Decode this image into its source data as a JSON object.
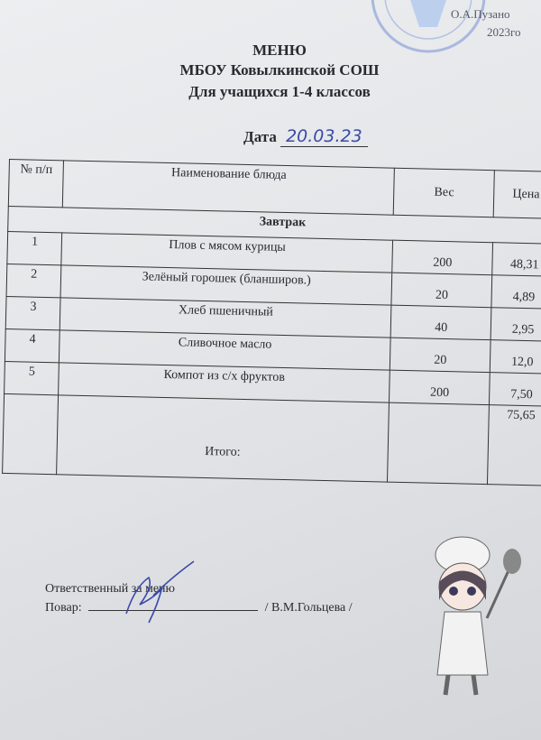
{
  "approval": {
    "name": "О.А.Пузано",
    "year": "2023го"
  },
  "header": {
    "title": "МЕНЮ",
    "school": "МБОУ Ковылкинской СОШ",
    "audience": "Для учащихся 1-4 классов",
    "date_label": "Дата",
    "date_value": "20.03.23"
  },
  "table": {
    "columns": [
      "№ п/п",
      "Наименование блюда",
      "Вес",
      "Цена"
    ],
    "section": "Завтрак",
    "rows": [
      {
        "n": "1",
        "name": "Плов с мясом курицы",
        "weight": "200",
        "price": "48,31"
      },
      {
        "n": "2",
        "name": "Зелёный горошек (бланширов.)",
        "weight": "20",
        "price": "4,89"
      },
      {
        "n": "3",
        "name": "Хлеб пшеничный",
        "weight": "40",
        "price": "2,95"
      },
      {
        "n": "4",
        "name": "Сливочное масло",
        "weight": "20",
        "price": "12,0"
      },
      {
        "n": "5",
        "name": "Компот из с/х фруктов",
        "weight": "200",
        "price": "7,50"
      }
    ],
    "total_label": "Итого:",
    "total_value": "75,65"
  },
  "footer": {
    "responsible": "Ответственный за меню",
    "cook_label": "Повар:",
    "cook_name": "/ В.М.Гольцева /"
  },
  "colors": {
    "stamp": "#8fa6d6",
    "ink": "#3a4aa8"
  }
}
